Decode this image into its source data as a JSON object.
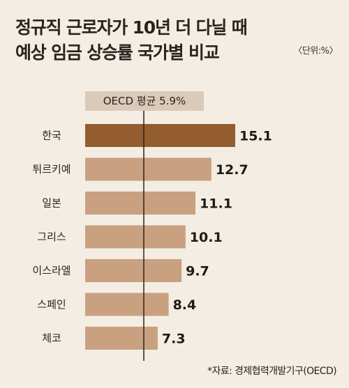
{
  "header": {
    "title_line1": "정규직 근로자가 10년 더 다닐 때",
    "title_line2": "예상 임금 상승률 국가별 비교",
    "unit": "〈단위:%〉"
  },
  "footer": {
    "source": "*자료: 경제협력개발기구(OECD)"
  },
  "chart_data": {
    "type": "bar",
    "orientation": "horizontal",
    "categories": [
      "한국",
      "튀르키예",
      "일본",
      "그리스",
      "이스라엘",
      "스페인",
      "체코"
    ],
    "values": [
      15.1,
      12.7,
      11.1,
      10.1,
      9.7,
      8.4,
      7.3
    ],
    "value_labels": [
      "15.1",
      "12.7",
      "11.1",
      "10.1",
      "9.7",
      "8.4",
      "7.3"
    ],
    "reference_line": {
      "label": "OECD 평균 5.9%",
      "value": 5.9
    },
    "colors": {
      "highlight": "#935d30",
      "bar": "#c9a080",
      "reference_box": "#dccab8",
      "line": "#2a2320",
      "background": "#f4ede3"
    },
    "highlight_index": 0
  }
}
